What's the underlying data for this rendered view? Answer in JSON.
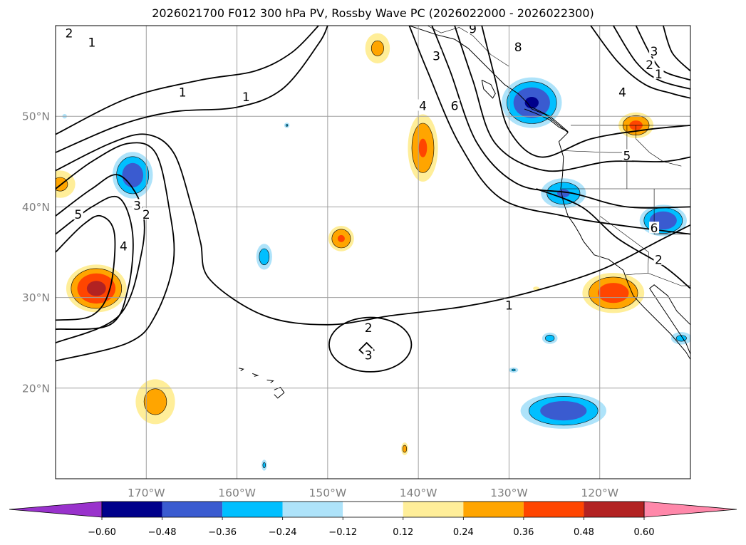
{
  "title": "2026021700 F012 300 hPa PV, Rossby Wave PC (2026022000 - 2026022300)",
  "map": {
    "projection": "PlateCarree",
    "lon_range": [
      -180,
      -110
    ],
    "lat_range": [
      10,
      60
    ],
    "gridlines": true,
    "lon_ticks": [
      {
        "value": -170,
        "label": "170°W"
      },
      {
        "value": -160,
        "label": "160°W"
      },
      {
        "value": -150,
        "label": "150°W"
      },
      {
        "value": -140,
        "label": "140°W"
      },
      {
        "value": -130,
        "label": "130°W"
      },
      {
        "value": -120,
        "label": "120°W"
      }
    ],
    "lat_ticks": [
      {
        "value": 20,
        "label": "20°N"
      },
      {
        "value": 30,
        "label": "30°N"
      },
      {
        "value": 40,
        "label": "40°N"
      },
      {
        "value": 50,
        "label": "50°N"
      }
    ]
  },
  "colorbar": {
    "orientation": "horizontal",
    "extend": "both",
    "levels": [
      -0.72,
      -0.6,
      -0.48,
      -0.36,
      -0.24,
      -0.12,
      0.12,
      0.24,
      0.36,
      0.48,
      0.6,
      0.72
    ],
    "colors": [
      "#9932cc",
      "#00008b",
      "#3a5bd0",
      "#00bfff",
      "#aee3fa",
      "#ffffff",
      "#ffee99",
      "#ffa500",
      "#ff4500",
      "#b22222",
      "#ff88aa"
    ],
    "tick_values": [
      -0.6,
      -0.48,
      -0.36,
      -0.24,
      -0.12,
      0.12,
      0.24,
      0.36,
      0.48,
      0.6
    ],
    "tick_labels": [
      "−0.60",
      "−0.48",
      "−0.36",
      "−0.24",
      "−0.12",
      "0.12",
      "0.24",
      "0.36",
      "0.48",
      "0.60"
    ]
  },
  "pc_anomalies": [
    {
      "name": "pos-west-coast-south",
      "lon": -175.5,
      "lat": 31.0,
      "rx": 3.8,
      "ry": 3.0,
      "peak": 0.52
    },
    {
      "name": "pos-dateline-north",
      "lon": -179.5,
      "lat": 42.5,
      "rx": 2.2,
      "ry": 2.0,
      "peak": 0.28
    },
    {
      "name": "pos-170w-south",
      "lon": -169.0,
      "lat": 18.5,
      "rx": 2.8,
      "ry": 3.2,
      "peak": 0.3
    },
    {
      "name": "pos-gulf-alaska-north",
      "lon": -144.5,
      "lat": 57.5,
      "rx": 1.8,
      "ry": 2.2,
      "peak": 0.28
    },
    {
      "name": "pos-150w-36n",
      "lon": -148.5,
      "lat": 36.5,
      "rx": 1.7,
      "ry": 1.7,
      "peak": 0.38
    },
    {
      "name": "pos-140w-46n",
      "lon": -139.5,
      "lat": 46.5,
      "rx": 2.0,
      "ry": 4.5,
      "peak": 0.38
    },
    {
      "name": "pos-116w-49n",
      "lon": -116.0,
      "lat": 49.0,
      "rx": 2.3,
      "ry": 1.7,
      "peak": 0.4
    },
    {
      "name": "pos-baja-30n",
      "lon": -118.5,
      "lat": 30.5,
      "rx": 4.0,
      "ry": 2.6,
      "peak": 0.44
    },
    {
      "name": "pos-141w-13n",
      "lon": -141.5,
      "lat": 13.3,
      "rx": 0.5,
      "ry": 0.9,
      "peak": 0.3
    },
    {
      "name": "pos-127w-31n",
      "lon": -127.0,
      "lat": 31.0,
      "rx": 0.5,
      "ry": 0.3,
      "peak": 0.24
    },
    {
      "name": "neg-172w-43n",
      "lon": -171.5,
      "lat": 43.5,
      "rx": 2.6,
      "ry": 3.0,
      "peak": -0.45
    },
    {
      "name": "neg-157w-34n",
      "lon": -157.0,
      "lat": 34.5,
      "rx": 1.1,
      "ry": 1.8,
      "peak": -0.32
    },
    {
      "name": "neg-bc-coast-51n",
      "lon": -127.5,
      "lat": 51.5,
      "rx": 3.8,
      "ry": 3.2,
      "peak": -0.5
    },
    {
      "name": "neg-ca-coast-41n",
      "lon": -124.0,
      "lat": 41.5,
      "rx": 3.0,
      "ry": 2.0,
      "peak": -0.38
    },
    {
      "name": "neg-113w-38n",
      "lon": -113.0,
      "lat": 38.5,
      "rx": 3.0,
      "ry": 2.0,
      "peak": -0.48
    },
    {
      "name": "neg-124w-17n",
      "lon": -124.0,
      "lat": 17.5,
      "rx": 5.5,
      "ry": 2.3,
      "peak": -0.46
    },
    {
      "name": "neg-125w-25n",
      "lon": -125.5,
      "lat": 25.5,
      "rx": 1.1,
      "ry": 0.8,
      "peak": -0.3
    },
    {
      "name": "neg-110w-26n",
      "lon": -111.0,
      "lat": 25.5,
      "rx": 1.5,
      "ry": 0.9,
      "peak": -0.28
    },
    {
      "name": "neg-130w-22n",
      "lon": -129.5,
      "lat": 22.0,
      "rx": 0.7,
      "ry": 0.4,
      "peak": -0.26
    },
    {
      "name": "neg-157w-12n",
      "lon": -157.0,
      "lat": 11.5,
      "rx": 0.4,
      "ry": 0.8,
      "peak": -0.28
    },
    {
      "name": "neg-154w-49n",
      "lon": -154.5,
      "lat": 49.0,
      "rx": 0.4,
      "ry": 0.4,
      "peak": -0.26
    },
    {
      "name": "neg-179w-50n",
      "lon": -179.0,
      "lat": 50.0,
      "rx": 0.4,
      "ry": 0.4,
      "peak": -0.2
    }
  ],
  "pv_contours": [
    {
      "level": "1",
      "points": [
        [
          -180,
          48
        ],
        [
          -172,
          52
        ],
        [
          -164,
          54
        ],
        [
          -158,
          55
        ],
        [
          -154,
          57
        ],
        [
          -151,
          60
        ]
      ]
    },
    {
      "level": "1",
      "points": [
        [
          -180,
          46
        ],
        [
          -173,
          49
        ],
        [
          -167,
          50.5
        ],
        [
          -160,
          51
        ],
        [
          -155,
          53
        ],
        [
          -151,
          58
        ],
        [
          -150,
          60
        ]
      ]
    },
    {
      "level": "1",
      "points": [
        [
          -180,
          44
        ],
        [
          -174,
          47
        ],
        [
          -170,
          48
        ],
        [
          -167,
          46
        ],
        [
          -165,
          40
        ],
        [
          -164,
          36
        ],
        [
          -163,
          32
        ],
        [
          -157,
          28
        ],
        [
          -150,
          27
        ],
        [
          -143,
          28
        ],
        [
          -135,
          29
        ],
        [
          -128,
          30.5
        ],
        [
          -120,
          33
        ],
        [
          -113,
          36.5
        ],
        [
          -110,
          38
        ]
      ]
    },
    {
      "level": "2",
      "points": [
        [
          -180,
          42
        ],
        [
          -176,
          45
        ],
        [
          -172,
          47
        ],
        [
          -169,
          46
        ],
        [
          -167.5,
          40
        ],
        [
          -167,
          34
        ],
        [
          -169,
          28
        ],
        [
          -172,
          25
        ],
        [
          -180,
          23
        ]
      ]
    },
    {
      "level": "2",
      "points": [
        [
          -127,
          42
        ],
        [
          -122,
          40
        ],
        [
          -118,
          36.5
        ],
        [
          -113,
          33.5
        ],
        [
          -110,
          31
        ]
      ]
    },
    {
      "level": "3",
      "points": [
        [
          -180,
          39
        ],
        [
          -176,
          42
        ],
        [
          -173,
          43.5
        ],
        [
          -170.5,
          40
        ],
        [
          -170.5,
          35
        ],
        [
          -173,
          28
        ],
        [
          -180,
          25
        ]
      ]
    },
    {
      "level": "4",
      "points": [
        [
          -180,
          37
        ],
        [
          -176,
          40
        ],
        [
          -173,
          41
        ],
        [
          -171.5,
          37
        ],
        [
          -172,
          31
        ],
        [
          -174,
          27
        ],
        [
          -180,
          26.5
        ]
      ]
    },
    {
      "level": "5",
      "points": [
        [
          -180,
          35
        ],
        [
          -177,
          38
        ],
        [
          -175,
          39
        ],
        [
          -173.5,
          37
        ],
        [
          -174,
          31
        ],
        [
          -176,
          28
        ],
        [
          -180,
          27.5
        ]
      ]
    },
    {
      "level": "1",
      "points": [
        [
          -121,
          60
        ],
        [
          -118,
          56
        ],
        [
          -115,
          53.5
        ],
        [
          -112,
          52.5
        ],
        [
          -110,
          52
        ]
      ]
    },
    {
      "level": "2",
      "points": [
        [
          -118.5,
          60
        ],
        [
          -116,
          56
        ],
        [
          -113.5,
          54
        ],
        [
          -110,
          53
        ]
      ]
    },
    {
      "level": "3",
      "points": [
        [
          -116,
          60
        ],
        [
          -114.5,
          57
        ],
        [
          -113,
          55
        ],
        [
          -110,
          54
        ]
      ]
    },
    {
      "level": "4",
      "points": [
        [
          -113,
          60
        ],
        [
          -112,
          57
        ],
        [
          -110,
          55
        ]
      ]
    },
    {
      "level": "3",
      "points": [
        [
          -141,
          60
        ],
        [
          -139,
          55
        ],
        [
          -135.5,
          47
        ],
        [
          -131,
          41
        ],
        [
          -124,
          39
        ],
        [
          -118,
          38
        ],
        [
          -110,
          37
        ]
      ]
    },
    {
      "level": "4",
      "points": [
        [
          -138.5,
          60
        ],
        [
          -136.5,
          55
        ],
        [
          -133.5,
          47
        ],
        [
          -129,
          42.5
        ],
        [
          -123,
          41.5
        ],
        [
          -117,
          40
        ],
        [
          -110,
          40
        ]
      ]
    },
    {
      "level": "5",
      "points": [
        [
          -136,
          60
        ],
        [
          -134,
          54
        ],
        [
          -131.5,
          47
        ],
        [
          -126,
          44
        ],
        [
          -119,
          45
        ],
        [
          -113,
          45
        ],
        [
          -110,
          45.5
        ]
      ]
    },
    {
      "level": "6",
      "points": [
        [
          -133,
          60
        ],
        [
          -131.5,
          54
        ],
        [
          -130,
          48.5
        ],
        [
          -126.5,
          45.5
        ],
        [
          -121,
          47.5
        ],
        [
          -115,
          48.5
        ],
        [
          -110,
          49
        ]
      ]
    }
  ],
  "contour_labels": [
    {
      "text": "2",
      "lon": -178.5,
      "lat": 59.0
    },
    {
      "text": "1",
      "lon": -176.0,
      "lat": 58.0
    },
    {
      "text": "1",
      "lon": -166.0,
      "lat": 52.5
    },
    {
      "text": "1",
      "lon": -159.0,
      "lat": 52.0
    },
    {
      "text": "5",
      "lon": -177.5,
      "lat": 39.0
    },
    {
      "text": "3",
      "lon": -171.0,
      "lat": 40.0
    },
    {
      "text": "2",
      "lon": -170.0,
      "lat": 39.0
    },
    {
      "text": "4",
      "lon": -172.5,
      "lat": 35.5
    },
    {
      "text": "2",
      "lon": -145.5,
      "lat": 26.5
    },
    {
      "text": "3",
      "lon": -145.5,
      "lat": 23.5
    },
    {
      "text": "1",
      "lon": -130.0,
      "lat": 29.0
    },
    {
      "text": "3",
      "lon": -138.0,
      "lat": 56.5
    },
    {
      "text": "9",
      "lon": -134.0,
      "lat": 59.5
    },
    {
      "text": "8",
      "lon": -129.0,
      "lat": 57.5
    },
    {
      "text": "6",
      "lon": -136.0,
      "lat": 51.0
    },
    {
      "text": "4",
      "lon": -139.5,
      "lat": 51.0
    },
    {
      "text": "5",
      "lon": -117.0,
      "lat": 45.5
    },
    {
      "text": "4",
      "lon": -117.5,
      "lat": 52.5
    },
    {
      "text": "3",
      "lon": -114.0,
      "lat": 57.0
    },
    {
      "text": "2",
      "lon": -114.5,
      "lat": 55.5
    },
    {
      "text": "1",
      "lon": -113.5,
      "lat": 54.5
    },
    {
      "text": "6",
      "lon": -114.0,
      "lat": 37.5
    },
    {
      "text": "2",
      "lon": -113.5,
      "lat": 34.0
    }
  ],
  "coastlines": [
    {
      "name": "north-america-coast",
      "points": [
        [
          -147,
          60
        ],
        [
          -144,
          60.5
        ],
        [
          -141,
          60
        ],
        [
          -138,
          59
        ],
        [
          -136,
          58.5
        ],
        [
          -134.5,
          57.5
        ],
        [
          -133,
          56
        ],
        [
          -131.5,
          54.5
        ],
        [
          -130.5,
          53.5
        ],
        [
          -129,
          52.5
        ],
        [
          -128,
          51.5
        ],
        [
          -127.5,
          50.8
        ],
        [
          -126,
          50.2
        ],
        [
          -124.5,
          49
        ],
        [
          -123.5,
          48.2
        ],
        [
          -124.5,
          47.2
        ],
        [
          -124,
          45.5
        ],
        [
          -124.1,
          43.5
        ],
        [
          -124.3,
          42
        ],
        [
          -124,
          40.5
        ],
        [
          -123.5,
          39
        ],
        [
          -122.8,
          38
        ],
        [
          -122.2,
          37
        ],
        [
          -121.8,
          36.2
        ],
        [
          -120.6,
          34.7
        ],
        [
          -119,
          34.2
        ],
        [
          -117.4,
          33
        ],
        [
          -116.9,
          31.6
        ],
        [
          -116.3,
          30.2
        ],
        [
          -115.2,
          29
        ],
        [
          -114,
          27.8
        ],
        [
          -112.2,
          26
        ],
        [
          -110.5,
          24
        ],
        [
          -109.9,
          23
        ]
      ]
    },
    {
      "name": "gulf-california-coast",
      "points": [
        [
          -109.9,
          23.5
        ],
        [
          -110.5,
          25
        ],
        [
          -111.5,
          26.5
        ],
        [
          -112.5,
          28
        ],
        [
          -113.5,
          29.5
        ],
        [
          -114.5,
          31
        ],
        [
          -114,
          31.4
        ],
        [
          -112.5,
          30.2
        ],
        [
          -111.5,
          28.5
        ],
        [
          -110,
          27
        ],
        [
          -110,
          26
        ]
      ]
    },
    {
      "name": "vancouver-island",
      "points": [
        [
          -128.3,
          50.8
        ],
        [
          -127,
          50.3
        ],
        [
          -125.5,
          49.6
        ],
        [
          -124.5,
          48.8
        ],
        [
          -123.5,
          48.3
        ],
        [
          -124.3,
          49
        ],
        [
          -125.5,
          50
        ],
        [
          -127.5,
          51
        ]
      ]
    },
    {
      "name": "haida-gwaii",
      "points": [
        [
          -133,
          54
        ],
        [
          -132,
          53.5
        ],
        [
          -131.5,
          52.5
        ],
        [
          -131.8,
          52
        ],
        [
          -132.8,
          53
        ],
        [
          -133,
          54
        ]
      ]
    },
    {
      "name": "hawaii-big-island",
      "points": [
        [
          -155.9,
          19.8
        ],
        [
          -155.2,
          20.1
        ],
        [
          -154.8,
          19.5
        ],
        [
          -155.5,
          18.9
        ],
        [
          -155.9,
          19.3
        ]
      ]
    },
    {
      "name": "maui",
      "points": [
        [
          -156.7,
          20.9
        ],
        [
          -156.0,
          20.8
        ],
        [
          -156.3,
          20.6
        ]
      ]
    },
    {
      "name": "oahu",
      "points": [
        [
          -158.3,
          21.6
        ],
        [
          -157.7,
          21.4
        ],
        [
          -158.1,
          21.3
        ]
      ]
    },
    {
      "name": "kauai",
      "points": [
        [
          -159.8,
          22.2
        ],
        [
          -159.3,
          22.1
        ],
        [
          -159.6,
          21.9
        ]
      ]
    }
  ],
  "boundaries": [
    {
      "name": "us-canada-border",
      "points": [
        [
          -123.2,
          49
        ],
        [
          -110,
          49
        ]
      ]
    },
    {
      "name": "alaska-canada-border",
      "points": [
        [
          -141,
          60
        ],
        [
          -139,
          60
        ],
        [
          -137.5,
          59.2
        ],
        [
          -135.5,
          59.8
        ],
        [
          -134,
          58.9
        ],
        [
          -132,
          56.8
        ],
        [
          -130,
          55.5
        ]
      ]
    },
    {
      "name": "oregon-california",
      "points": [
        [
          -124.2,
          42
        ],
        [
          -110,
          42
        ]
      ]
    },
    {
      "name": "oregon-washington",
      "points": [
        [
          -124,
          46.2
        ],
        [
          -119,
          46
        ],
        [
          -117,
          46
        ]
      ]
    },
    {
      "name": "nevada-california",
      "points": [
        [
          -120,
          42
        ],
        [
          -120,
          39
        ],
        [
          -114.6,
          35
        ]
      ]
    },
    {
      "name": "arizona-border",
      "points": [
        [
          -114.6,
          35
        ],
        [
          -114.7,
          32.7
        ],
        [
          -111,
          31.3
        ],
        [
          -108.2,
          31.3
        ]
      ]
    },
    {
      "name": "us-mexico-border",
      "points": [
        [
          -117.1,
          32.5
        ],
        [
          -114.7,
          32.7
        ]
      ]
    },
    {
      "name": "idaho-border",
      "points": [
        [
          -117,
          49
        ],
        [
          -117,
          44.3
        ],
        [
          -117,
          42
        ]
      ]
    },
    {
      "name": "utah-border",
      "points": [
        [
          -114,
          42
        ],
        [
          -114,
          37
        ],
        [
          -110,
          37
        ]
      ]
    },
    {
      "name": "montana-border",
      "points": [
        [
          -116,
          49
        ],
        [
          -116,
          47.5
        ],
        [
          -114.5,
          46
        ],
        [
          -113,
          45
        ],
        [
          -111,
          44.5
        ]
      ]
    }
  ]
}
